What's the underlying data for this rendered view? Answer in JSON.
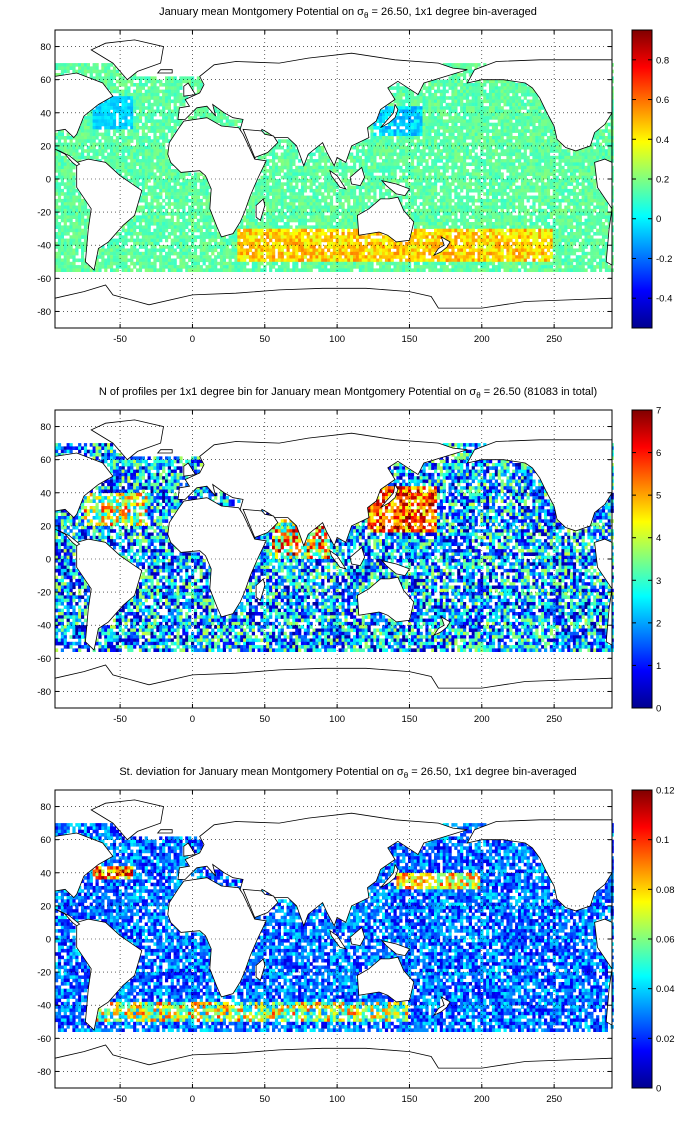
{
  "colormap": [
    "#00008f",
    "#0000ff",
    "#0080ff",
    "#00ffff",
    "#80ff80",
    "#ffff00",
    "#ff8000",
    "#ff0000",
    "#800000"
  ],
  "land_color": "#ffffff",
  "chart_data": [
    {
      "type": "heatmap",
      "title_pre": "January mean Montgomery Potential on ",
      "title_sigma": "σ",
      "title_sub": "θ",
      "title_post": " = 26.50, 1x1 degree bin-averaged",
      "xlim": [
        -95,
        290
      ],
      "ylim": [
        -90,
        90
      ],
      "x_ticks": [
        -50,
        0,
        50,
        100,
        150,
        200,
        250
      ],
      "y_ticks": [
        -80,
        -60,
        -40,
        -20,
        0,
        20,
        40,
        60,
        80
      ],
      "grid": "dotted",
      "colorbar": {
        "range": [
          -0.55,
          0.95
        ],
        "ticks": [
          -0.4,
          -0.2,
          0,
          0.2,
          0.4,
          0.6,
          0.8
        ],
        "tick_labels": [
          "-0.4",
          "-0.2",
          "0",
          "0.2",
          "0.4",
          "0.6",
          "0.8"
        ]
      },
      "field_description": "values near 0.1-0.2 across oceans; 0.4-0.6 along ~35-45S in Southern Ocean; low (~-0.1) in NW Pacific near Japan"
    },
    {
      "type": "heatmap",
      "title_pre": "N of profiles per 1x1 degree bin for January mean Montgomery Potential on ",
      "title_sigma": "σ",
      "title_sub": "θ",
      "title_post": " = 26.50 (81083 in total)",
      "xlim": [
        -95,
        290
      ],
      "ylim": [
        -90,
        90
      ],
      "x_ticks": [
        -50,
        0,
        50,
        100,
        150,
        200,
        250
      ],
      "y_ticks": [
        -80,
        -60,
        -40,
        -20,
        0,
        20,
        40,
        60,
        80
      ],
      "grid": "dotted",
      "colorbar": {
        "range": [
          0,
          7
        ],
        "ticks": [
          0,
          1,
          2,
          3,
          4,
          5,
          6,
          7
        ],
        "tick_labels": [
          "0",
          "1",
          "2",
          "3",
          "4",
          "5",
          "6",
          "7"
        ]
      }
    },
    {
      "type": "heatmap",
      "title_pre": "St. deviation for January mean Montgomery Potential on ",
      "title_sigma": "σ",
      "title_sub": "θ",
      "title_post": " = 26.50, 1x1 degree bin-averaged",
      "xlim": [
        -95,
        290
      ],
      "ylim": [
        -90,
        90
      ],
      "x_ticks": [
        -50,
        0,
        50,
        100,
        150,
        200,
        250
      ],
      "y_ticks": [
        -80,
        -60,
        -40,
        -20,
        0,
        20,
        40,
        60,
        80
      ],
      "grid": "dotted",
      "colorbar": {
        "range": [
          0,
          0.12
        ],
        "ticks": [
          0,
          0.02,
          0.04,
          0.06,
          0.08,
          0.1,
          0.12
        ],
        "tick_labels": [
          "0",
          "0.02",
          "0.04",
          "0.06",
          "0.08",
          "0.1",
          "0.12"
        ]
      }
    }
  ]
}
